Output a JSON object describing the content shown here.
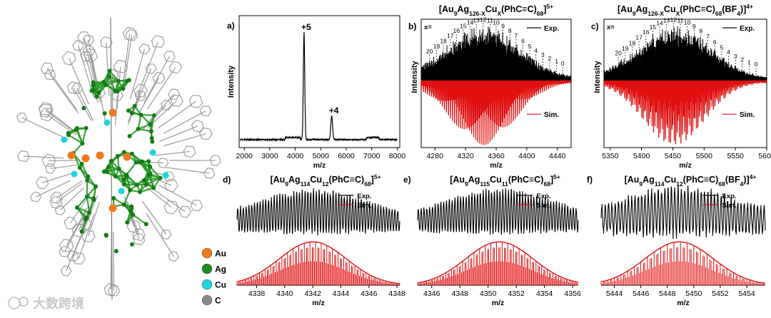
{
  "legend": {
    "items": [
      {
        "label": "Au",
        "color": "#f07a1e"
      },
      {
        "label": "Ag",
        "color": "#1f8a1f"
      },
      {
        "label": "Cu",
        "color": "#22d3de"
      },
      {
        "label": "C",
        "color": "#8a8a8a"
      }
    ]
  },
  "watermark": {
    "text": "大数跨境"
  },
  "colors": {
    "exp": "#000000",
    "sim": "#e01010",
    "ag_bond": "#2a9a2a",
    "c_bond": "#9a9a9a"
  },
  "chart_data": [
    {
      "id": "a",
      "type": "line",
      "panel_label": "a)",
      "title": "",
      "xlabel": "m/z",
      "ylabel": "Intensity",
      "xlim": [
        1800,
        8100
      ],
      "xticks": [
        2000,
        3000,
        4000,
        5000,
        6000,
        7000,
        8000
      ],
      "peaks": [
        {
          "x": 4345,
          "rel": 1.0,
          "label": "+5"
        },
        {
          "x": 5430,
          "rel": 0.22,
          "label": "+4"
        }
      ]
    },
    {
      "id": "b",
      "type": "line",
      "panel_label": "b)",
      "title_main": "[Au",
      "title_parts": [
        "[Au",
        "9",
        "Ag",
        "126-X",
        "Cu",
        "X",
        "(PhC≡C)",
        "68",
        "]",
        "5+"
      ],
      "xlabel": "m/z",
      "ylabel": "Intensity",
      "xlim": [
        4262,
        4458
      ],
      "xticks": [
        4280,
        4320,
        4360,
        4400,
        4440
      ],
      "x_label": "x=",
      "series": [
        {
          "name": "Exp."
        },
        {
          "name": "Sim."
        }
      ],
      "envelope": {
        "center": 4343,
        "width": 48
      },
      "x_annotations": [
        {
          "n": "0",
          "x": 4447
        },
        {
          "n": "1",
          "x": 4439
        },
        {
          "n": "2",
          "x": 4430
        },
        {
          "n": "3",
          "x": 4421
        },
        {
          "n": "4",
          "x": 4412
        },
        {
          "n": "5",
          "x": 4404
        },
        {
          "n": "6",
          "x": 4395
        },
        {
          "n": "7",
          "x": 4386
        },
        {
          "n": "8",
          "x": 4378
        },
        {
          "n": "9",
          "x": 4369
        },
        {
          "n": "10",
          "x": 4360
        },
        {
          "n": "11",
          "x": 4352
        },
        {
          "n": "12",
          "x": 4343
        },
        {
          "n": "13",
          "x": 4334
        },
        {
          "n": "14",
          "x": 4326
        },
        {
          "n": "15",
          "x": 4317
        },
        {
          "n": "16",
          "x": 4308
        },
        {
          "n": "17",
          "x": 4300
        },
        {
          "n": "18",
          "x": 4291
        },
        {
          "n": "19",
          "x": 4282
        },
        {
          "n": "20",
          "x": 4273
        }
      ]
    },
    {
      "id": "c",
      "type": "line",
      "panel_label": "c)",
      "title_parts": [
        "[Au",
        "9",
        "Ag",
        "126-X",
        "Cu",
        "X",
        "(PhC≡C)",
        "68",
        "(BF",
        "4",
        ")]",
        "4+"
      ],
      "xlabel": "m/z",
      "ylabel": "Intensity",
      "xlim": [
        5340,
        5600
      ],
      "xticks": [
        5350,
        5400,
        5450,
        5500,
        5550,
        5600
      ],
      "x_label": "x=",
      "series": [
        {
          "name": "Exp."
        },
        {
          "name": "Sim."
        }
      ],
      "envelope": {
        "center": 5452,
        "width": 58
      },
      "x_annotations": [
        {
          "n": "0",
          "x": 5583
        },
        {
          "n": "1",
          "x": 5572
        },
        {
          "n": "2",
          "x": 5561
        },
        {
          "n": "3",
          "x": 5550
        },
        {
          "n": "4",
          "x": 5539
        },
        {
          "n": "5",
          "x": 5528
        },
        {
          "n": "6",
          "x": 5517
        },
        {
          "n": "7",
          "x": 5506
        },
        {
          "n": "8",
          "x": 5495
        },
        {
          "n": "9",
          "x": 5484
        },
        {
          "n": "10",
          "x": 5473
        },
        {
          "n": "11",
          "x": 5462
        },
        {
          "n": "12",
          "x": 5451
        },
        {
          "n": "13",
          "x": 5440
        },
        {
          "n": "14",
          "x": 5429
        },
        {
          "n": "15",
          "x": 5418
        },
        {
          "n": "16",
          "x": 5407
        },
        {
          "n": "17",
          "x": 5396
        },
        {
          "n": "18",
          "x": 5385
        },
        {
          "n": "19",
          "x": 5374
        },
        {
          "n": "20",
          "x": 5363
        }
      ]
    },
    {
      "id": "d",
      "type": "line",
      "panel_label": "d)",
      "title_parts": [
        "[Au",
        "9",
        "Ag",
        "114",
        "Cu",
        "12",
        "(PhC≡C)",
        "68",
        "]",
        "5+"
      ],
      "xlabel": "m/z",
      "xlim": [
        4336.6,
        4348.2
      ],
      "xticks": [
        4338,
        4340,
        4342,
        4344,
        4346,
        4348
      ],
      "series": [
        {
          "name": "Exp."
        },
        {
          "name": "Sim."
        }
      ],
      "envelope": {
        "center": 4342.0,
        "width": 2.4
      },
      "spacing": 0.2
    },
    {
      "id": "e",
      "type": "line",
      "panel_label": "e)",
      "title_parts": [
        "[Au",
        "9",
        "Ag",
        "115",
        "Cu",
        "11",
        "(PhC≡C)",
        "68",
        "]",
        "5+"
      ],
      "xlabel": "m/z",
      "xlim": [
        4345.0,
        4356.4
      ],
      "xticks": [
        4346,
        4348,
        4350,
        4352,
        4354,
        4356
      ],
      "series": [
        {
          "name": "Exp."
        },
        {
          "name": "Sim."
        }
      ],
      "envelope": {
        "center": 4350.8,
        "width": 2.4
      },
      "spacing": 0.2
    },
    {
      "id": "f",
      "type": "line",
      "panel_label": "f)",
      "title_parts": [
        "[Au",
        "9",
        "Ag",
        "114",
        "Cu",
        "12",
        "(PhC≡C)",
        "68",
        "(BF",
        "4",
        ")]",
        "4+"
      ],
      "xlabel": "m/z",
      "xlim": [
        5443.0,
        5455.4
      ],
      "xticks": [
        5444,
        5446,
        5448,
        5450,
        5452,
        5454
      ],
      "series": [
        {
          "name": "Exp."
        },
        {
          "name": "Sim."
        }
      ],
      "envelope": {
        "center": 5448.9,
        "width": 2.6
      },
      "spacing": 0.25
    }
  ]
}
